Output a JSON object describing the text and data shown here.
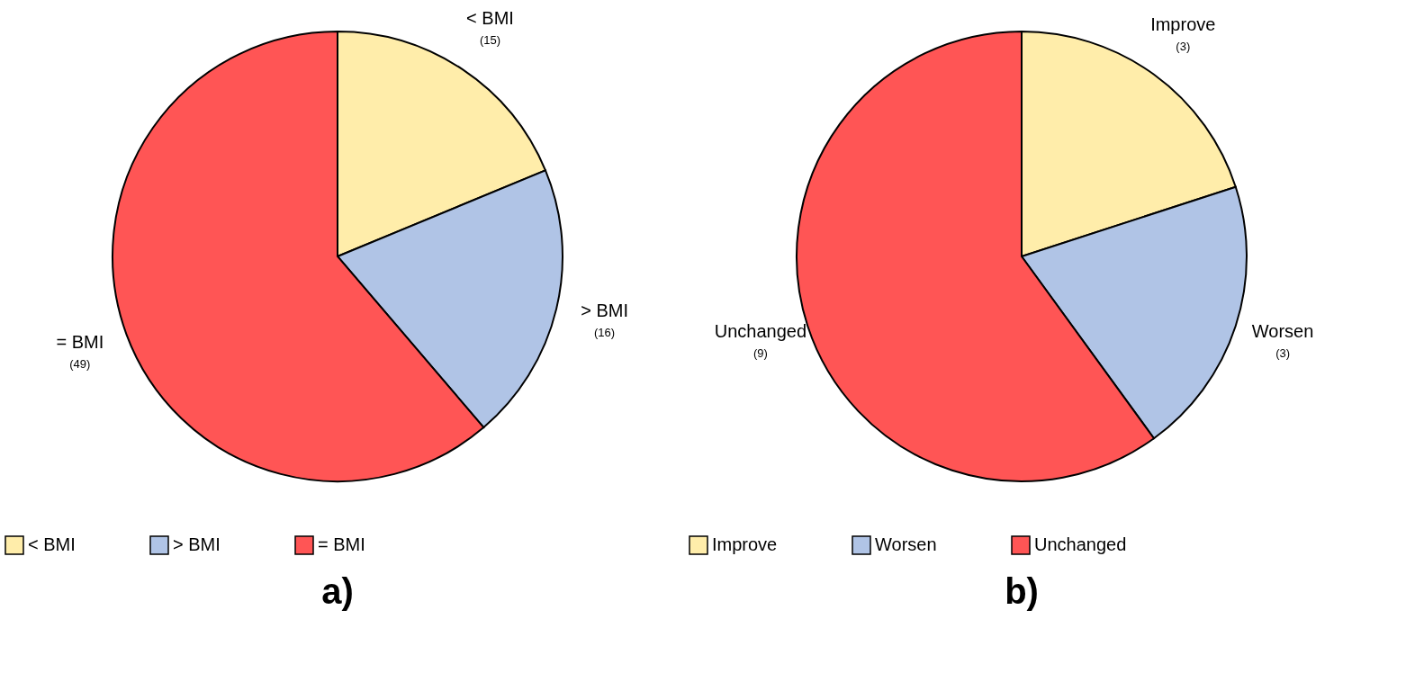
{
  "chart_data": [
    {
      "type": "pie",
      "title": "a)",
      "categories": [
        "< BMI",
        "> BMI",
        "= BMI"
      ],
      "values": [
        15,
        16,
        49
      ],
      "colors": [
        "#ffedaa",
        "#b0c4e6",
        "#ff5555"
      ],
      "value_labels": [
        "(15)",
        "(16)",
        "(49)"
      ],
      "legend": "bottom"
    },
    {
      "type": "pie",
      "title": "b)",
      "categories": [
        "Improve",
        "Worsen",
        "Unchanged"
      ],
      "values": [
        3,
        3,
        9
      ],
      "colors": [
        "#ffedaa",
        "#b0c4e6",
        "#ff5555"
      ],
      "value_labels": [
        "(3)",
        "(3)",
        "(9)"
      ],
      "legend": "bottom"
    }
  ]
}
